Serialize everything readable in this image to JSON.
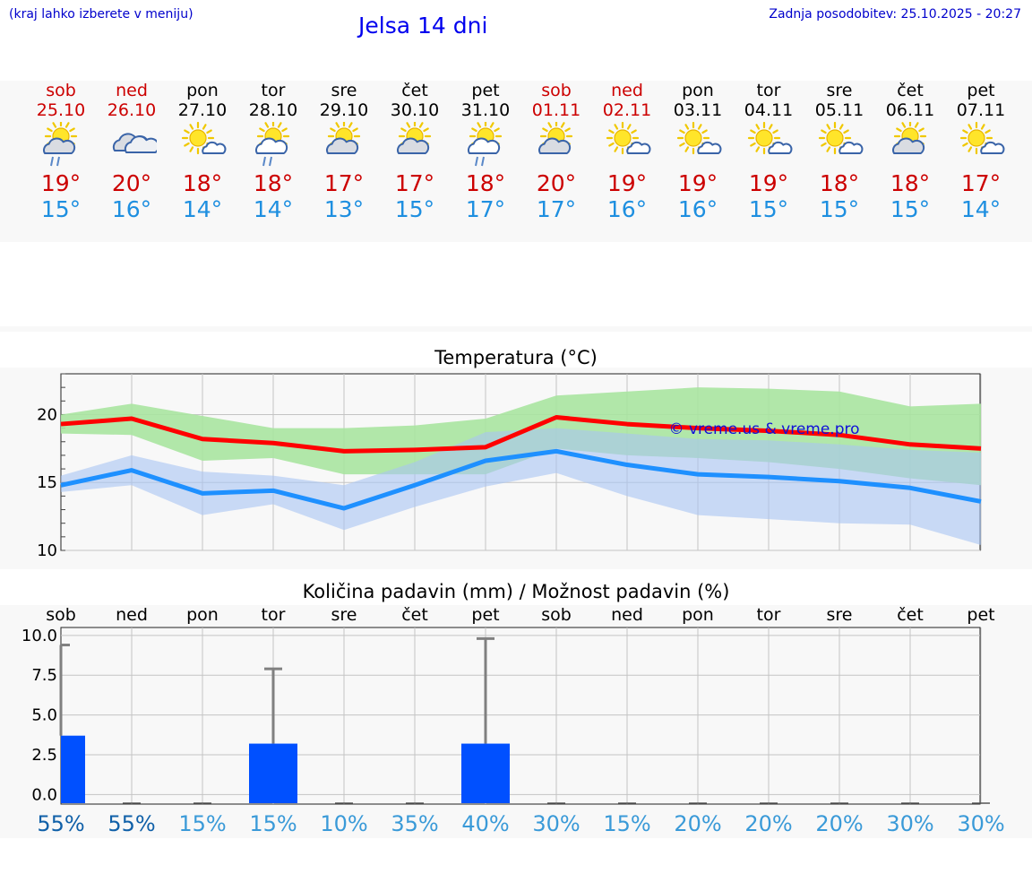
{
  "header": {
    "menu_hint": "(kraj lahko izberete v meniju)",
    "title": "Jelsa 14 dni",
    "updated": "Zadnja posodobitev: 25.10.2025 - 20:27"
  },
  "colors": {
    "weekend": "#cc0000",
    "weekday": "#000000",
    "max_temp": "#cc0000",
    "min_temp": "#1e8fe0",
    "max_band": "#a8e4a0",
    "min_band": "#a8c4f4",
    "max_line": "#ff0000",
    "min_line": "#1e90ff",
    "precip_bar": "#0050ff",
    "chance_dark": "#1060a8",
    "chance_light": "#3a9ad8"
  },
  "days": [
    {
      "dow": "sob",
      "date": "25.10",
      "weekend": true,
      "icon": "partly-sunny-rain-icon",
      "max": "19°",
      "min": "15°"
    },
    {
      "dow": "ned",
      "date": "26.10",
      "weekend": true,
      "icon": "cloudy-icon",
      "max": "20°",
      "min": "16°"
    },
    {
      "dow": "pon",
      "date": "27.10",
      "weekend": false,
      "icon": "sun-small-cloud-icon",
      "max": "18°",
      "min": "14°"
    },
    {
      "dow": "tor",
      "date": "28.10",
      "weekend": false,
      "icon": "sun-cloud-rain-icon",
      "max": "18°",
      "min": "14°"
    },
    {
      "dow": "sre",
      "date": "29.10",
      "weekend": false,
      "icon": "partly-sunny-icon",
      "max": "17°",
      "min": "13°"
    },
    {
      "dow": "čet",
      "date": "30.10",
      "weekend": false,
      "icon": "partly-sunny-icon",
      "max": "17°",
      "min": "15°"
    },
    {
      "dow": "pet",
      "date": "31.10",
      "weekend": false,
      "icon": "sun-cloud-rain-icon",
      "max": "18°",
      "min": "17°"
    },
    {
      "dow": "sob",
      "date": "01.11",
      "weekend": true,
      "icon": "partly-sunny-icon",
      "max": "20°",
      "min": "17°"
    },
    {
      "dow": "ned",
      "date": "02.11",
      "weekend": true,
      "icon": "sun-small-cloud-icon",
      "max": "19°",
      "min": "16°"
    },
    {
      "dow": "pon",
      "date": "03.11",
      "weekend": false,
      "icon": "sun-small-cloud-icon",
      "max": "19°",
      "min": "16°"
    },
    {
      "dow": "tor",
      "date": "04.11",
      "weekend": false,
      "icon": "sun-small-cloud-icon",
      "max": "19°",
      "min": "15°"
    },
    {
      "dow": "sre",
      "date": "05.11",
      "weekend": false,
      "icon": "sun-small-cloud-icon",
      "max": "18°",
      "min": "15°"
    },
    {
      "dow": "čet",
      "date": "06.11",
      "weekend": false,
      "icon": "partly-sunny-icon",
      "max": "18°",
      "min": "15°"
    },
    {
      "dow": "pet",
      "date": "07.11",
      "weekend": false,
      "icon": "sun-small-cloud-icon",
      "max": "17°",
      "min": "14°"
    }
  ],
  "chart_data": [
    {
      "type": "line",
      "title": "Temperatura (°C)",
      "x": [
        "25.10",
        "26.10",
        "27.10",
        "28.10",
        "29.10",
        "30.10",
        "31.10",
        "01.11",
        "02.11",
        "03.11",
        "04.11",
        "05.11",
        "06.11",
        "07.11"
      ],
      "ylim": [
        10,
        23
      ],
      "yticks": [
        10,
        15,
        20
      ],
      "grid": true,
      "watermark": "© vreme.us & vreme.pro",
      "series": [
        {
          "role": "max",
          "values": [
            19.3,
            19.7,
            18.2,
            17.9,
            17.3,
            17.4,
            17.6,
            19.8,
            19.3,
            19.0,
            18.8,
            18.5,
            17.8,
            17.5
          ],
          "band_low": [
            18.6,
            18.5,
            16.6,
            16.8,
            15.6,
            15.6,
            15.6,
            17.5,
            17.0,
            16.8,
            16.5,
            16.0,
            15.3,
            14.8
          ],
          "band_high": [
            20.0,
            20.8,
            19.9,
            19.0,
            19.0,
            19.2,
            19.7,
            21.4,
            21.7,
            22.0,
            21.9,
            21.7,
            20.6,
            20.8
          ]
        },
        {
          "role": "min",
          "values": [
            14.8,
            15.9,
            14.2,
            14.4,
            13.1,
            14.8,
            16.6,
            17.3,
            16.3,
            15.6,
            15.4,
            15.1,
            14.6,
            13.6
          ],
          "band_low": [
            14.3,
            14.8,
            12.6,
            13.4,
            11.5,
            13.2,
            14.7,
            15.7,
            14.0,
            12.6,
            12.3,
            12.0,
            11.9,
            10.4
          ],
          "band_high": [
            15.5,
            17.0,
            15.8,
            15.5,
            14.8,
            16.5,
            18.7,
            19.0,
            18.6,
            18.2,
            18.1,
            17.8,
            17.4,
            17.2
          ]
        }
      ]
    },
    {
      "type": "bar",
      "title": "Količina padavin (mm) / Možnost padavin (%)",
      "categories": [
        "sob",
        "ned",
        "pon",
        "tor",
        "sre",
        "čet",
        "pet",
        "sob",
        "ned",
        "pon",
        "tor",
        "sre",
        "čet",
        "pet"
      ],
      "ylim": [
        -0.6,
        10.5
      ],
      "yticks": [
        0.0,
        2.5,
        5.0,
        7.5,
        10.0
      ],
      "ytick_labels": [
        "0.0",
        "2.5",
        "5.0",
        "7.5",
        "10.0"
      ],
      "values": [
        3.7,
        0,
        0,
        3.2,
        0,
        0,
        3.2,
        0,
        0,
        0,
        0,
        0,
        0,
        0
      ],
      "error_max": [
        9.4,
        0,
        0,
        7.9,
        0,
        0,
        9.8,
        0,
        0,
        0,
        0,
        0,
        0,
        0
      ],
      "chance": [
        "55%",
        "55%",
        "15%",
        "15%",
        "10%",
        "35%",
        "40%",
        "30%",
        "15%",
        "20%",
        "20%",
        "20%",
        "30%",
        "30%"
      ]
    }
  ]
}
